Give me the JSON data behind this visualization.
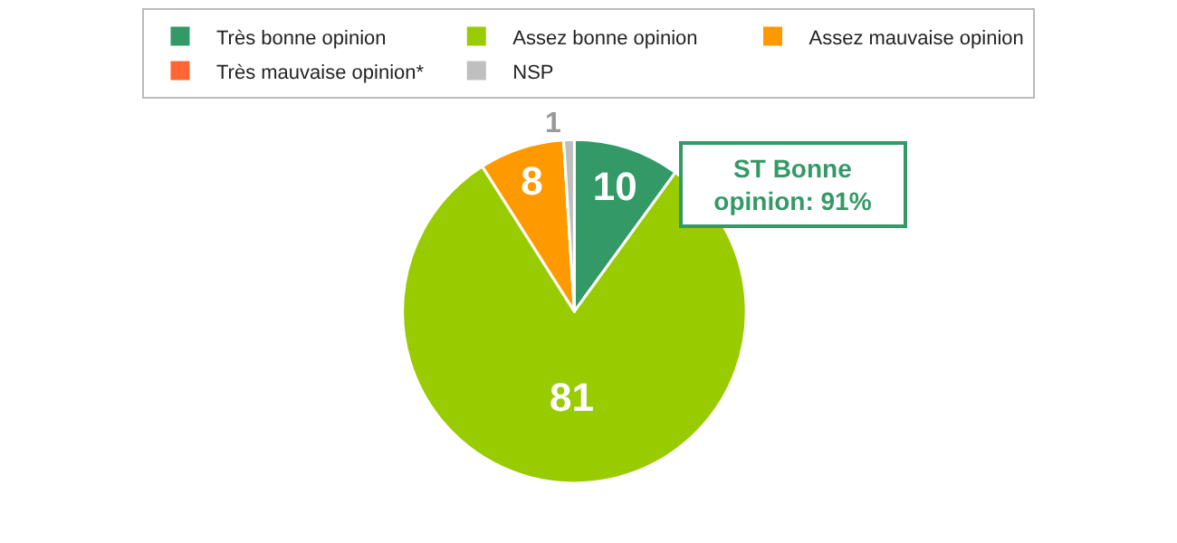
{
  "chart_data": {
    "type": "pie",
    "categories": [
      "Très bonne opinion",
      "Assez bonne opinion",
      "Assez mauvaise opinion",
      "Très mauvaise opinion*",
      "NSP"
    ],
    "values": [
      10,
      81,
      8,
      0,
      1
    ],
    "colors": [
      "#339966",
      "#99cc00",
      "#ff9900",
      "#ff6633",
      "#bfbfbf"
    ],
    "value_labels": [
      "10",
      "81",
      "8",
      null,
      "1"
    ],
    "legend": "top",
    "annotations": [
      "ST Bonne\nopinion: 91%"
    ]
  }
}
